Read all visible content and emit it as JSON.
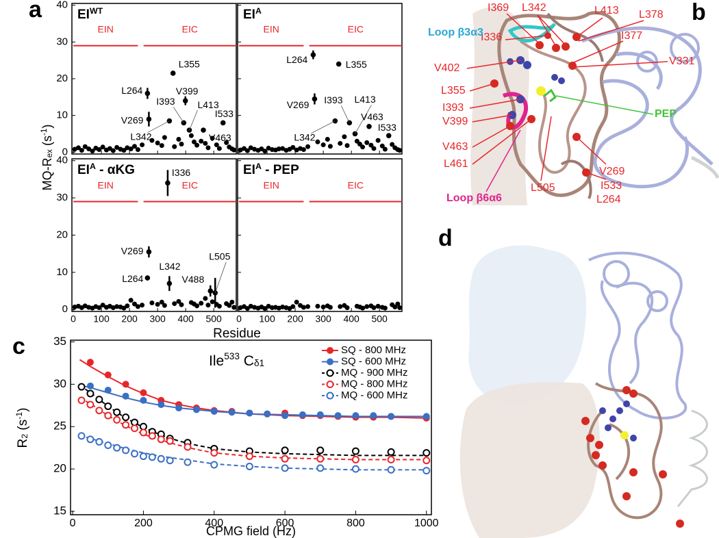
{
  "panel_labels": [
    "a",
    "b",
    "c",
    "d"
  ],
  "structure_b": {
    "residues": [
      "I369",
      "L342",
      "L413",
      "L378",
      "I336",
      "I377",
      "V331",
      "V402",
      "L355",
      "I393",
      "V399",
      "V463",
      "L461",
      "L505",
      "V269",
      "I533",
      "L264"
    ],
    "loops": [
      "Loop β3α3",
      "Loop β6α6"
    ],
    "ligand": "PEP"
  },
  "chart_data": [
    {
      "type": "scatter",
      "title": [
        "EI",
        "WT"
      ],
      "color": "#000000",
      "xlim": [
        -5,
        580
      ],
      "ylim": [
        -0.5,
        40.5
      ],
      "xticks": [
        0,
        100,
        200,
        300,
        400,
        500
      ],
      "yticks": [
        0,
        10,
        20,
        30,
        40
      ],
      "ylabel": [
        "MQ-R",
        "ex",
        " (s",
        "-1",
        ")"
      ],
      "regions": [
        {
          "label": "EIN",
          "start": 0,
          "end": 230,
          "y": 29,
          "color": "#e8262a"
        },
        {
          "label": "EIC",
          "start": 250,
          "end": 580,
          "y": 29,
          "color": "#e8262a"
        }
      ],
      "x": [
        5,
        18,
        30,
        42,
        55,
        68,
        80,
        92,
        105,
        118,
        130,
        142,
        155,
        168,
        180,
        192,
        205,
        218,
        230,
        245,
        280,
        300,
        315,
        325,
        360,
        375,
        385,
        420,
        430,
        440,
        455,
        470,
        480,
        495,
        510,
        520,
        545,
        555,
        565,
        572
      ],
      "values": [
        0.8,
        1.2,
        0.5,
        1.5,
        0.9,
        0.3,
        1.1,
        0.7,
        1.4,
        0.6,
        1.0,
        0.4,
        1.3,
        0.8,
        0.5,
        1.2,
        0.9,
        1.6,
        0.7,
        2.0,
        3.2,
        2.5,
        1.8,
        4.0,
        1.5,
        3.5,
        2.2,
        4.5,
        2.8,
        1.9,
        3.0,
        2.4,
        1.2,
        3.8,
        2.0,
        1.0,
        2.6,
        1.4,
        0.9,
        0.6
      ],
      "annotations": [
        {
          "text": "L355",
          "x": 355,
          "y": 21.5
        },
        {
          "text": "L264",
          "x": 264,
          "y": 16,
          "error": 1.5
        },
        {
          "text": "V399",
          "x": 399,
          "y": 14,
          "error": 1.2
        },
        {
          "text": "I393",
          "x": 393,
          "y": 8
        },
        {
          "text": "L413",
          "x": 413,
          "y": 6
        },
        {
          "text": "I533",
          "x": 533,
          "y": 8
        },
        {
          "text": "V269",
          "x": 269,
          "y": 9,
          "error": 2
        },
        {
          "text": "L342",
          "x": 342,
          "y": 8.5
        },
        {
          "text": "V463",
          "x": 463,
          "y": 6
        }
      ]
    },
    {
      "type": "scatter",
      "title": [
        "EI",
        "A"
      ],
      "color": "#000000",
      "xlim": [
        -5,
        580
      ],
      "ylim": [
        -0.5,
        40.5
      ],
      "xticks": [
        0,
        100,
        200,
        300,
        400,
        500
      ],
      "yticks": [
        0,
        10,
        20,
        30,
        40
      ],
      "regions": [
        {
          "label": "EIN",
          "start": 0,
          "end": 230,
          "y": 29,
          "color": "#e8262a"
        },
        {
          "label": "EIC",
          "start": 250,
          "end": 580,
          "y": 29,
          "color": "#e8262a"
        }
      ],
      "x": [
        5,
        18,
        30,
        42,
        55,
        68,
        80,
        92,
        105,
        118,
        130,
        142,
        155,
        168,
        180,
        192,
        205,
        218,
        230,
        245,
        280,
        300,
        315,
        325,
        360,
        375,
        385,
        420,
        430,
        440,
        455,
        470,
        480,
        495,
        510,
        520,
        545,
        555,
        565,
        572
      ],
      "values": [
        0.6,
        1.0,
        0.4,
        1.2,
        0.8,
        0.5,
        0.9,
        0.3,
        1.1,
        0.7,
        0.6,
        0.9,
        1.0,
        0.5,
        0.8,
        1.3,
        0.6,
        1.0,
        0.7,
        1.5,
        2.8,
        2.0,
        3.5,
        1.6,
        2.4,
        4.2,
        1.8,
        3.0,
        2.2,
        1.4,
        2.6,
        1.9,
        1.0,
        3.2,
        1.7,
        0.8,
        2.1,
        1.2,
        0.7,
        0.5
      ],
      "annotations": [
        {
          "text": "L264",
          "x": 264,
          "y": 26.5,
          "error": 1.2
        },
        {
          "text": "L355",
          "x": 355,
          "y": 24
        },
        {
          "text": "V269",
          "x": 269,
          "y": 14.5,
          "error": 1.5
        },
        {
          "text": "I393",
          "x": 393,
          "y": 8
        },
        {
          "text": "L413",
          "x": 413,
          "y": 5
        },
        {
          "text": "V463",
          "x": 463,
          "y": 7
        },
        {
          "text": "I533",
          "x": 533,
          "y": 4.5
        },
        {
          "text": "L342",
          "x": 342,
          "y": 8.5
        }
      ]
    },
    {
      "type": "scatter",
      "title": [
        "EI",
        "A",
        " - αKG"
      ],
      "color": "#000000",
      "xlim": [
        -5,
        580
      ],
      "ylim": [
        -0.5,
        40.5
      ],
      "xticks": [
        0,
        100,
        200,
        300,
        400,
        500
      ],
      "yticks": [
        0,
        10,
        20,
        30,
        40
      ],
      "xlabel": "Residue",
      "regions": [
        {
          "label": "EIN",
          "start": 0,
          "end": 230,
          "y": 29,
          "color": "#e8262a"
        },
        {
          "label": "EIC",
          "start": 250,
          "end": 580,
          "y": 29,
          "color": "#e8262a"
        }
      ],
      "x": [
        5,
        18,
        30,
        42,
        55,
        68,
        80,
        92,
        105,
        118,
        130,
        142,
        155,
        168,
        180,
        192,
        205,
        218,
        230,
        245,
        280,
        300,
        315,
        325,
        360,
        375,
        385,
        420,
        430,
        440,
        455,
        470,
        480,
        495,
        510,
        520,
        545,
        555,
        565,
        572
      ],
      "values": [
        0.7,
        0.9,
        0.5,
        1.0,
        0.6,
        0.4,
        0.8,
        0.5,
        1.2,
        0.6,
        0.9,
        0.5,
        0.8,
        0.7,
        0.4,
        1.0,
        2.5,
        1.5,
        0.8,
        1.2,
        1.8,
        1.4,
        2.0,
        1.1,
        1.6,
        2.2,
        1.3,
        1.9,
        1.5,
        1.0,
        1.7,
        3.0,
        1.2,
        2.1,
        1.4,
        0.9,
        1.6,
        1.1,
        2.0,
        0.6
      ],
      "annotations": [
        {
          "text": "I336",
          "x": 336,
          "y": 34,
          "error": 3.5
        },
        {
          "text": "V269",
          "x": 269,
          "y": 15.5,
          "error": 1.5
        },
        {
          "text": "L264",
          "x": 264,
          "y": 8.5
        },
        {
          "text": "L342",
          "x": 342,
          "y": 7,
          "error": 2
        },
        {
          "text": "L505",
          "x": 505,
          "y": 4.5,
          "error": 4
        },
        {
          "text": "V488",
          "x": 488,
          "y": 5,
          "error": 1.5
        }
      ]
    },
    {
      "type": "scatter",
      "title": [
        "EI",
        "A",
        " - PEP"
      ],
      "color": "#000000",
      "xlim": [
        -5,
        580
      ],
      "ylim": [
        -0.5,
        40.5
      ],
      "xticks": [
        0,
        100,
        200,
        300,
        400,
        500
      ],
      "yticks": [
        0,
        10,
        20,
        30,
        40
      ],
      "regions": [
        {
          "label": "EIN",
          "start": 0,
          "end": 230,
          "y": 29,
          "color": "#e8262a"
        },
        {
          "label": "EIC",
          "start": 250,
          "end": 580,
          "y": 29,
          "color": "#e8262a"
        }
      ],
      "x": [
        5,
        18,
        30,
        42,
        55,
        68,
        80,
        92,
        105,
        118,
        130,
        142,
        155,
        168,
        180,
        192,
        205,
        218,
        230,
        245,
        280,
        300,
        315,
        325,
        360,
        375,
        385,
        420,
        430,
        440,
        455,
        470,
        480,
        495,
        510,
        520,
        545,
        555,
        565,
        572
      ],
      "values": [
        0.5,
        0.8,
        0.3,
        0.9,
        0.6,
        0.4,
        0.7,
        0.3,
        0.9,
        0.5,
        0.6,
        0.4,
        0.7,
        0.5,
        0.3,
        0.8,
        2.0,
        1.1,
        0.6,
        0.8,
        0.9,
        0.7,
        1.0,
        0.6,
        0.8,
        1.1,
        0.5,
        0.9,
        0.7,
        0.4,
        0.8,
        1.0,
        0.5,
        0.9,
        0.6,
        0.4,
        1.3,
        0.7,
        1.5,
        0.5
      ],
      "annotations": []
    },
    {
      "type": "line",
      "annotation": [
        "Ile",
        "533",
        " C",
        "δ1"
      ],
      "xlabel": "CPMG field (Hz)",
      "ylabel": [
        "R",
        "2",
        " (s",
        "-1",
        ")"
      ],
      "xlim": [
        -6,
        1014
      ],
      "ylim": [
        14.6,
        35.2
      ],
      "xticks": [
        0,
        200,
        400,
        600,
        800,
        1000
      ],
      "yticks": [
        15,
        20,
        25,
        30,
        35
      ],
      "legend": "upper right",
      "fit_x": [
        20,
        50,
        100,
        150,
        200,
        250,
        300,
        350,
        400,
        500,
        600,
        700,
        800,
        900,
        1000
      ],
      "series": [
        {
          "name": "SQ - 800 MHz",
          "color": "#e8262a",
          "filled": true,
          "dashed": false,
          "x": [
            50,
            100,
            150,
            200,
            250,
            300,
            350,
            400,
            450,
            500,
            550,
            600,
            650,
            700,
            750,
            800,
            850,
            900,
            1000
          ],
          "values": [
            32.6,
            31.1,
            30.0,
            29.0,
            28.1,
            27.6,
            27.2,
            26.9,
            26.8,
            26.6,
            26.5,
            26.6,
            26.3,
            26.3,
            26.2,
            26.1,
            26.1,
            26.2,
            26.0
          ],
          "fit": [
            32.9,
            32.1,
            30.9,
            29.8,
            28.9,
            28.1,
            27.6,
            27.2,
            26.9,
            26.5,
            26.3,
            26.2,
            26.1,
            26.1,
            26.0
          ]
        },
        {
          "name": "SQ - 600 MHz",
          "color": "#3a6fc4",
          "filled": true,
          "dashed": false,
          "x": [
            50,
            100,
            150,
            200,
            250,
            300,
            350,
            400,
            450,
            500,
            550,
            600,
            650,
            700,
            750,
            800,
            850,
            900,
            1000
          ],
          "values": [
            29.8,
            29.3,
            28.6,
            28.1,
            27.6,
            27.2,
            27.0,
            26.8,
            26.7,
            26.6,
            26.5,
            26.3,
            26.4,
            26.4,
            26.3,
            26.3,
            26.3,
            26.2,
            26.2
          ],
          "fit": [
            29.9,
            29.6,
            29.0,
            28.4,
            27.9,
            27.5,
            27.2,
            27.0,
            26.8,
            26.5,
            26.4,
            26.3,
            26.2,
            26.2,
            26.2
          ]
        },
        {
          "name": "MQ - 900 MHz",
          "color": "#000000",
          "filled": false,
          "dashed": true,
          "x": [
            25,
            50,
            75,
            100,
            125,
            150,
            175,
            200,
            225,
            250,
            275,
            325,
            400,
            500,
            600,
            700,
            800,
            900,
            1000
          ],
          "values": [
            29.7,
            28.9,
            28.2,
            27.4,
            26.7,
            26.1,
            25.5,
            25.0,
            24.4,
            24.1,
            23.6,
            23.1,
            22.4,
            22.1,
            22.2,
            22.2,
            22.1,
            22.0,
            21.9
          ],
          "fit": [
            29.9,
            29.0,
            27.4,
            26.0,
            24.9,
            24.0,
            23.3,
            22.8,
            22.4,
            22.0,
            21.8,
            21.7,
            21.6,
            21.6,
            21.6
          ]
        },
        {
          "name": "MQ - 800 MHz",
          "color": "#e8262a",
          "filled": false,
          "dashed": true,
          "x": [
            25,
            50,
            75,
            100,
            125,
            150,
            175,
            200,
            225,
            250,
            275,
            325,
            400,
            500,
            600,
            700,
            800,
            900,
            1000
          ],
          "values": [
            28.1,
            27.6,
            26.9,
            26.3,
            25.8,
            25.2,
            24.8,
            24.3,
            23.9,
            23.5,
            23.3,
            22.6,
            21.9,
            21.5,
            21.2,
            21.2,
            21.1,
            21.1,
            21.0
          ],
          "fit": [
            28.4,
            27.7,
            26.3,
            25.1,
            24.1,
            23.4,
            22.8,
            22.3,
            21.9,
            21.5,
            21.3,
            21.2,
            21.1,
            21.1,
            21.1
          ]
        },
        {
          "name": "MQ - 600 MHz",
          "color": "#3a6fc4",
          "filled": false,
          "dashed": true,
          "x": [
            25,
            50,
            75,
            100,
            125,
            150,
            175,
            200,
            225,
            250,
            275,
            325,
            400,
            500,
            600,
            700,
            800,
            900,
            1000
          ],
          "values": [
            23.9,
            23.5,
            23.2,
            22.8,
            22.5,
            22.2,
            21.8,
            21.5,
            21.4,
            21.2,
            21.0,
            20.8,
            20.5,
            20.3,
            20.1,
            20.1,
            20.0,
            19.9,
            19.8
          ],
          "fit": [
            24.0,
            23.6,
            23.0,
            22.4,
            21.9,
            21.5,
            21.2,
            20.9,
            20.6,
            20.3,
            20.1,
            20.0,
            19.9,
            19.9,
            19.9
          ]
        }
      ]
    }
  ]
}
